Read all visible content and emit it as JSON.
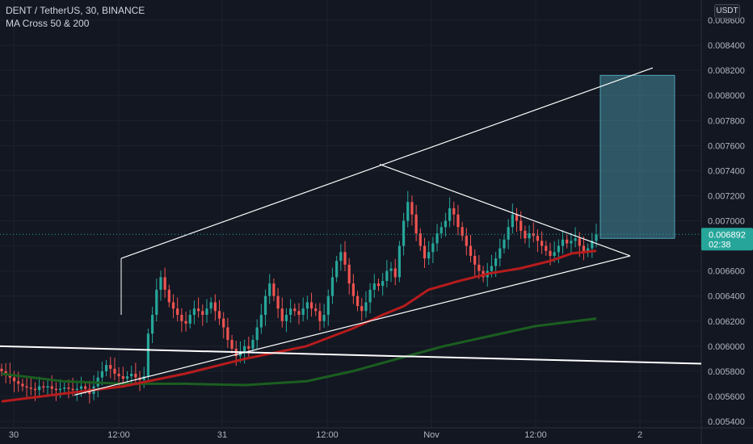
{
  "legend": {
    "symbol_line": "DENT / TetherUS, 30, BINANCE",
    "study_line": "MA Cross 50 & 200"
  },
  "currency": "USDT",
  "price_axis": {
    "ticks": [
      "0.008600",
      "0.008400",
      "0.008200",
      "0.008000",
      "0.007800",
      "0.007600",
      "0.007400",
      "0.007200",
      "0.007000",
      "0.006800",
      "0.006600",
      "0.006400",
      "0.006200",
      "0.006000",
      "0.005800",
      "0.005600",
      "0.005400"
    ]
  },
  "current_price": {
    "value": "0.006892",
    "countdown": "02:38"
  },
  "time_axis": {
    "ticks": [
      "30",
      "12:00",
      "31",
      "12:00",
      "Nov",
      "12:00",
      "2"
    ]
  },
  "colors": {
    "background": "#131722",
    "up": "#26a69a",
    "down": "#ef5350",
    "ma50": "#b71c1c",
    "ma200": "#1b5e20",
    "trendline": "#ffffff",
    "target_box": "#4fa3b5",
    "price_label": "#26a69a"
  },
  "chart_data": {
    "type": "candlestick",
    "title": "DENT / TetherUS, 30, BINANCE",
    "ylim": [
      0.0054,
      0.0086
    ],
    "x_ticks": [
      "30",
      "12:00",
      "31",
      "12:00",
      "Nov",
      "12:00",
      "2"
    ],
    "series": [
      {
        "name": "MA Cross 50 & 200 (MA 50)",
        "values": [
          [
            0,
            0.00556
          ],
          [
            20,
            0.00562
          ],
          [
            40,
            0.00568
          ],
          [
            60,
            0.00578
          ],
          [
            80,
            0.0059
          ],
          [
            100,
            0.006
          ],
          [
            115,
            0.00614
          ],
          [
            125,
            0.00625
          ],
          [
            132,
            0.00632
          ],
          [
            140,
            0.00645
          ],
          [
            150,
            0.00652
          ],
          [
            160,
            0.00658
          ],
          [
            170,
            0.00662
          ],
          [
            180,
            0.00668
          ],
          [
            187,
            0.00674
          ],
          [
            195,
            0.00676
          ]
        ]
      },
      {
        "name": "MA Cross 50 & 200 (MA 200)",
        "values": [
          [
            0,
            0.00578
          ],
          [
            20,
            0.00572
          ],
          [
            40,
            0.0057
          ],
          [
            60,
            0.0057
          ],
          [
            80,
            0.00569
          ],
          [
            100,
            0.00572
          ],
          [
            115,
            0.0058
          ],
          [
            130,
            0.0059
          ],
          [
            145,
            0.006
          ],
          [
            160,
            0.00608
          ],
          [
            175,
            0.00616
          ],
          [
            195,
            0.00622
          ]
        ]
      }
    ],
    "candles_close_approx": [
      0.0058,
      0.00578,
      0.00575,
      0.00572,
      0.0057,
      0.00568,
      0.00567,
      0.00566,
      0.00565,
      0.00568,
      0.00567,
      0.00568,
      0.00566,
      0.00565,
      0.00566,
      0.00567,
      0.00566,
      0.00565,
      0.00566,
      0.00568,
      0.00566,
      0.00562,
      0.00568,
      0.00575,
      0.0058,
      0.00585,
      0.00582,
      0.00578,
      0.00576,
      0.00574,
      0.00576,
      0.00578,
      0.00575,
      0.00573,
      0.00576,
      0.0061,
      0.00625,
      0.00645,
      0.00655,
      0.00645,
      0.00635,
      0.0063,
      0.00625,
      0.0062,
      0.00618,
      0.00625,
      0.0063,
      0.00628,
      0.00625,
      0.0063,
      0.00635,
      0.00628,
      0.00622,
      0.00615,
      0.00605,
      0.00598,
      0.00592,
      0.00595,
      0.006,
      0.00598,
      0.00605,
      0.00615,
      0.00625,
      0.0064,
      0.0065,
      0.0064,
      0.0063,
      0.0062,
      0.00625,
      0.0063,
      0.00628,
      0.00625,
      0.0063,
      0.00635,
      0.0063,
      0.00628,
      0.0062,
      0.00625,
      0.0064,
      0.00655,
      0.00668,
      0.00675,
      0.00665,
      0.0065,
      0.0064,
      0.00632,
      0.00628,
      0.00635,
      0.00645,
      0.0065,
      0.00648,
      0.00652,
      0.0066,
      0.00662,
      0.00655,
      0.0068,
      0.007,
      0.00715,
      0.00705,
      0.0069,
      0.0068,
      0.0067,
      0.00675,
      0.00682,
      0.0069,
      0.00695,
      0.007,
      0.0071,
      0.00705,
      0.00695,
      0.00688,
      0.0068,
      0.00672,
      0.00665,
      0.0066,
      0.00655,
      0.0066,
      0.00664,
      0.0067,
      0.00678,
      0.00685,
      0.00695,
      0.00705,
      0.007,
      0.00692,
      0.00686,
      0.0069,
      0.00688,
      0.00684,
      0.0068,
      0.00676,
      0.00672,
      0.00675,
      0.0068,
      0.00685,
      0.00682,
      0.00684,
      0.00686,
      0.0068,
      0.00675,
      0.00678,
      0.00684,
      0.00689
    ],
    "annotations": {
      "rising_channel_upper": [
        [
          0.0067,
          "x0"
        ],
        [
          0.00745,
          "peak"
        ],
        [
          0.00822,
          "end"
        ]
      ],
      "triangle_lower": "rising support from 0.00561 to 0.00672",
      "triangle_upper": "descending resistance from 0.00745 to 0.00672",
      "horizontal_support": "sloping line ~0.00600 to 0.00586",
      "target_zone": [
        0.00686,
        0.00816
      ]
    }
  }
}
